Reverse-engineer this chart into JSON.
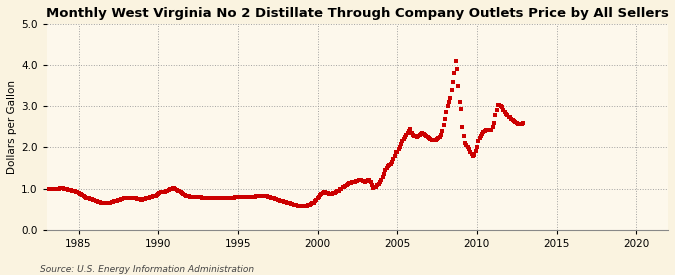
{
  "title": "Monthly West Virginia No 2 Distillate Through Company Outlets Price by All Sellers",
  "ylabel": "Dollars per Gallon",
  "source": "Source: U.S. Energy Information Administration",
  "xlim": [
    1983,
    2022
  ],
  "ylim": [
    0.0,
    5.0
  ],
  "yticks": [
    0.0,
    1.0,
    2.0,
    3.0,
    4.0,
    5.0
  ],
  "xticks": [
    1985,
    1990,
    1995,
    2000,
    2005,
    2010,
    2015,
    2020
  ],
  "line_color": "#cc0000",
  "marker": "s",
  "marker_size": 2.2,
  "background_color": "#faf3e0",
  "plot_bg_color": "#fdf8ec",
  "grid_color": "#999999",
  "title_fontsize": 9.5,
  "label_fontsize": 7.5,
  "tick_fontsize": 7.5,
  "source_fontsize": 6.5,
  "data": [
    [
      1983.0,
      1.0
    ],
    [
      1983.083,
      0.99
    ],
    [
      1983.167,
      0.99
    ],
    [
      1983.25,
      0.98
    ],
    [
      1983.333,
      0.98
    ],
    [
      1983.417,
      0.99
    ],
    [
      1983.5,
      1.0
    ],
    [
      1983.583,
      1.0
    ],
    [
      1983.667,
      1.0
    ],
    [
      1983.75,
      1.0
    ],
    [
      1983.833,
      1.01
    ],
    [
      1983.917,
      1.01
    ],
    [
      1984.0,
      1.01
    ],
    [
      1984.083,
      1.0
    ],
    [
      1984.167,
      0.99
    ],
    [
      1984.25,
      0.98
    ],
    [
      1984.333,
      0.97
    ],
    [
      1984.417,
      0.96
    ],
    [
      1984.5,
      0.96
    ],
    [
      1984.583,
      0.95
    ],
    [
      1984.667,
      0.94
    ],
    [
      1984.75,
      0.93
    ],
    [
      1984.833,
      0.92
    ],
    [
      1984.917,
      0.91
    ],
    [
      1985.0,
      0.9
    ],
    [
      1985.083,
      0.88
    ],
    [
      1985.167,
      0.86
    ],
    [
      1985.25,
      0.84
    ],
    [
      1985.333,
      0.82
    ],
    [
      1985.417,
      0.8
    ],
    [
      1985.5,
      0.78
    ],
    [
      1985.583,
      0.77
    ],
    [
      1985.667,
      0.76
    ],
    [
      1985.75,
      0.75
    ],
    [
      1985.833,
      0.74
    ],
    [
      1985.917,
      0.73
    ],
    [
      1986.0,
      0.72
    ],
    [
      1986.083,
      0.71
    ],
    [
      1986.167,
      0.7
    ],
    [
      1986.25,
      0.68
    ],
    [
      1986.333,
      0.67
    ],
    [
      1986.417,
      0.66
    ],
    [
      1986.5,
      0.65
    ],
    [
      1986.583,
      0.65
    ],
    [
      1986.667,
      0.65
    ],
    [
      1986.75,
      0.65
    ],
    [
      1986.833,
      0.65
    ],
    [
      1986.917,
      0.65
    ],
    [
      1987.0,
      0.66
    ],
    [
      1987.083,
      0.67
    ],
    [
      1987.167,
      0.68
    ],
    [
      1987.25,
      0.69
    ],
    [
      1987.333,
      0.7
    ],
    [
      1987.417,
      0.71
    ],
    [
      1987.5,
      0.72
    ],
    [
      1987.583,
      0.73
    ],
    [
      1987.667,
      0.74
    ],
    [
      1987.75,
      0.75
    ],
    [
      1987.833,
      0.76
    ],
    [
      1987.917,
      0.77
    ],
    [
      1988.0,
      0.77
    ],
    [
      1988.083,
      0.77
    ],
    [
      1988.167,
      0.77
    ],
    [
      1988.25,
      0.77
    ],
    [
      1988.333,
      0.77
    ],
    [
      1988.417,
      0.77
    ],
    [
      1988.5,
      0.76
    ],
    [
      1988.583,
      0.76
    ],
    [
      1988.667,
      0.75
    ],
    [
      1988.75,
      0.74
    ],
    [
      1988.833,
      0.74
    ],
    [
      1988.917,
      0.73
    ],
    [
      1989.0,
      0.73
    ],
    [
      1989.083,
      0.74
    ],
    [
      1989.167,
      0.75
    ],
    [
      1989.25,
      0.76
    ],
    [
      1989.333,
      0.77
    ],
    [
      1989.417,
      0.78
    ],
    [
      1989.5,
      0.79
    ],
    [
      1989.583,
      0.8
    ],
    [
      1989.667,
      0.81
    ],
    [
      1989.75,
      0.82
    ],
    [
      1989.833,
      0.83
    ],
    [
      1989.917,
      0.85
    ],
    [
      1990.0,
      0.87
    ],
    [
      1990.083,
      0.89
    ],
    [
      1990.167,
      0.91
    ],
    [
      1990.25,
      0.92
    ],
    [
      1990.333,
      0.92
    ],
    [
      1990.417,
      0.92
    ],
    [
      1990.5,
      0.93
    ],
    [
      1990.583,
      0.94
    ],
    [
      1990.667,
      0.96
    ],
    [
      1990.75,
      0.98
    ],
    [
      1990.833,
      1.0
    ],
    [
      1990.917,
      1.02
    ],
    [
      1991.0,
      1.01
    ],
    [
      1991.083,
      0.99
    ],
    [
      1991.167,
      0.97
    ],
    [
      1991.25,
      0.95
    ],
    [
      1991.333,
      0.93
    ],
    [
      1991.417,
      0.91
    ],
    [
      1991.5,
      0.89
    ],
    [
      1991.583,
      0.87
    ],
    [
      1991.667,
      0.85
    ],
    [
      1991.75,
      0.83
    ],
    [
      1991.833,
      0.82
    ],
    [
      1991.917,
      0.81
    ],
    [
      1992.0,
      0.8
    ],
    [
      1992.083,
      0.8
    ],
    [
      1992.167,
      0.8
    ],
    [
      1992.25,
      0.8
    ],
    [
      1992.333,
      0.8
    ],
    [
      1992.417,
      0.8
    ],
    [
      1992.5,
      0.79
    ],
    [
      1992.583,
      0.79
    ],
    [
      1992.667,
      0.79
    ],
    [
      1992.75,
      0.78
    ],
    [
      1992.833,
      0.78
    ],
    [
      1992.917,
      0.77
    ],
    [
      1993.0,
      0.77
    ],
    [
      1993.083,
      0.77
    ],
    [
      1993.167,
      0.77
    ],
    [
      1993.25,
      0.77
    ],
    [
      1993.333,
      0.77
    ],
    [
      1993.417,
      0.77
    ],
    [
      1993.5,
      0.77
    ],
    [
      1993.583,
      0.77
    ],
    [
      1993.667,
      0.77
    ],
    [
      1993.75,
      0.77
    ],
    [
      1993.833,
      0.77
    ],
    [
      1993.917,
      0.77
    ],
    [
      1994.0,
      0.77
    ],
    [
      1994.083,
      0.77
    ],
    [
      1994.167,
      0.77
    ],
    [
      1994.25,
      0.77
    ],
    [
      1994.333,
      0.77
    ],
    [
      1994.417,
      0.78
    ],
    [
      1994.5,
      0.78
    ],
    [
      1994.583,
      0.78
    ],
    [
      1994.667,
      0.78
    ],
    [
      1994.75,
      0.78
    ],
    [
      1994.833,
      0.79
    ],
    [
      1994.917,
      0.79
    ],
    [
      1995.0,
      0.79
    ],
    [
      1995.083,
      0.79
    ],
    [
      1995.167,
      0.79
    ],
    [
      1995.25,
      0.79
    ],
    [
      1995.333,
      0.79
    ],
    [
      1995.417,
      0.79
    ],
    [
      1995.5,
      0.79
    ],
    [
      1995.583,
      0.79
    ],
    [
      1995.667,
      0.79
    ],
    [
      1995.75,
      0.79
    ],
    [
      1995.833,
      0.79
    ],
    [
      1995.917,
      0.79
    ],
    [
      1996.0,
      0.79
    ],
    [
      1996.083,
      0.8
    ],
    [
      1996.167,
      0.81
    ],
    [
      1996.25,
      0.82
    ],
    [
      1996.333,
      0.83
    ],
    [
      1996.417,
      0.83
    ],
    [
      1996.5,
      0.83
    ],
    [
      1996.583,
      0.83
    ],
    [
      1996.667,
      0.83
    ],
    [
      1996.75,
      0.82
    ],
    [
      1996.833,
      0.81
    ],
    [
      1996.917,
      0.8
    ],
    [
      1997.0,
      0.79
    ],
    [
      1997.083,
      0.78
    ],
    [
      1997.167,
      0.77
    ],
    [
      1997.25,
      0.76
    ],
    [
      1997.333,
      0.75
    ],
    [
      1997.417,
      0.74
    ],
    [
      1997.5,
      0.73
    ],
    [
      1997.583,
      0.72
    ],
    [
      1997.667,
      0.71
    ],
    [
      1997.75,
      0.7
    ],
    [
      1997.833,
      0.69
    ],
    [
      1997.917,
      0.68
    ],
    [
      1998.0,
      0.67
    ],
    [
      1998.083,
      0.66
    ],
    [
      1998.167,
      0.65
    ],
    [
      1998.25,
      0.64
    ],
    [
      1998.333,
      0.63
    ],
    [
      1998.417,
      0.62
    ],
    [
      1998.5,
      0.61
    ],
    [
      1998.583,
      0.6
    ],
    [
      1998.667,
      0.59
    ],
    [
      1998.75,
      0.58
    ],
    [
      1998.833,
      0.57
    ],
    [
      1998.917,
      0.57
    ],
    [
      1999.0,
      0.57
    ],
    [
      1999.083,
      0.57
    ],
    [
      1999.167,
      0.57
    ],
    [
      1999.25,
      0.57
    ],
    [
      1999.333,
      0.58
    ],
    [
      1999.417,
      0.59
    ],
    [
      1999.5,
      0.6
    ],
    [
      1999.583,
      0.62
    ],
    [
      1999.667,
      0.64
    ],
    [
      1999.75,
      0.66
    ],
    [
      1999.833,
      0.69
    ],
    [
      1999.917,
      0.72
    ],
    [
      2000.0,
      0.76
    ],
    [
      2000.083,
      0.8
    ],
    [
      2000.167,
      0.84
    ],
    [
      2000.25,
      0.87
    ],
    [
      2000.333,
      0.9
    ],
    [
      2000.417,
      0.91
    ],
    [
      2000.5,
      0.91
    ],
    [
      2000.583,
      0.9
    ],
    [
      2000.667,
      0.89
    ],
    [
      2000.75,
      0.88
    ],
    [
      2000.833,
      0.88
    ],
    [
      2000.917,
      0.88
    ],
    [
      2001.0,
      0.89
    ],
    [
      2001.083,
      0.9
    ],
    [
      2001.167,
      0.91
    ],
    [
      2001.25,
      0.93
    ],
    [
      2001.333,
      0.95
    ],
    [
      2001.417,
      0.98
    ],
    [
      2001.5,
      1.0
    ],
    [
      2001.583,
      1.03
    ],
    [
      2001.667,
      1.05
    ],
    [
      2001.75,
      1.07
    ],
    [
      2001.833,
      1.09
    ],
    [
      2001.917,
      1.11
    ],
    [
      2002.0,
      1.13
    ],
    [
      2002.083,
      1.14
    ],
    [
      2002.167,
      1.15
    ],
    [
      2002.25,
      1.16
    ],
    [
      2002.333,
      1.17
    ],
    [
      2002.417,
      1.18
    ],
    [
      2002.5,
      1.19
    ],
    [
      2002.583,
      1.2
    ],
    [
      2002.667,
      1.21
    ],
    [
      2002.75,
      1.2
    ],
    [
      2002.833,
      1.19
    ],
    [
      2002.917,
      1.18
    ],
    [
      2003.0,
      1.17
    ],
    [
      2003.083,
      1.18
    ],
    [
      2003.167,
      1.2
    ],
    [
      2003.25,
      1.22
    ],
    [
      2003.333,
      1.15
    ],
    [
      2003.417,
      1.08
    ],
    [
      2003.5,
      1.02
    ],
    [
      2003.583,
      1.03
    ],
    [
      2003.667,
      1.05
    ],
    [
      2003.75,
      1.08
    ],
    [
      2003.833,
      1.11
    ],
    [
      2003.917,
      1.15
    ],
    [
      2004.0,
      1.2
    ],
    [
      2004.083,
      1.28
    ],
    [
      2004.167,
      1.36
    ],
    [
      2004.25,
      1.44
    ],
    [
      2004.333,
      1.5
    ],
    [
      2004.417,
      1.54
    ],
    [
      2004.5,
      1.57
    ],
    [
      2004.583,
      1.6
    ],
    [
      2004.667,
      1.65
    ],
    [
      2004.75,
      1.72
    ],
    [
      2004.833,
      1.8
    ],
    [
      2004.917,
      1.88
    ],
    [
      2005.0,
      1.9
    ],
    [
      2005.083,
      1.95
    ],
    [
      2005.167,
      2.0
    ],
    [
      2005.25,
      2.08
    ],
    [
      2005.333,
      2.15
    ],
    [
      2005.417,
      2.2
    ],
    [
      2005.5,
      2.25
    ],
    [
      2005.583,
      2.3
    ],
    [
      2005.667,
      2.35
    ],
    [
      2005.75,
      2.4
    ],
    [
      2005.833,
      2.45
    ],
    [
      2005.917,
      2.35
    ],
    [
      2006.0,
      2.3
    ],
    [
      2006.083,
      2.28
    ],
    [
      2006.167,
      2.27
    ],
    [
      2006.25,
      2.26
    ],
    [
      2006.333,
      2.28
    ],
    [
      2006.417,
      2.3
    ],
    [
      2006.5,
      2.32
    ],
    [
      2006.583,
      2.34
    ],
    [
      2006.667,
      2.33
    ],
    [
      2006.75,
      2.3
    ],
    [
      2006.833,
      2.27
    ],
    [
      2006.917,
      2.25
    ],
    [
      2007.0,
      2.22
    ],
    [
      2007.083,
      2.2
    ],
    [
      2007.167,
      2.19
    ],
    [
      2007.25,
      2.18
    ],
    [
      2007.333,
      2.18
    ],
    [
      2007.417,
      2.19
    ],
    [
      2007.5,
      2.2
    ],
    [
      2007.583,
      2.22
    ],
    [
      2007.667,
      2.25
    ],
    [
      2007.75,
      2.3
    ],
    [
      2007.833,
      2.4
    ],
    [
      2007.917,
      2.55
    ],
    [
      2008.0,
      2.7
    ],
    [
      2008.083,
      2.85
    ],
    [
      2008.167,
      3.0
    ],
    [
      2008.25,
      3.1
    ],
    [
      2008.333,
      3.2
    ],
    [
      2008.417,
      3.4
    ],
    [
      2008.5,
      3.6
    ],
    [
      2008.583,
      3.8
    ],
    [
      2008.667,
      4.1
    ],
    [
      2008.75,
      3.9
    ],
    [
      2008.833,
      3.5
    ],
    [
      2008.917,
      3.1
    ],
    [
      2009.0,
      2.93
    ],
    [
      2009.083,
      2.5
    ],
    [
      2009.167,
      2.28
    ],
    [
      2009.25,
      2.1
    ],
    [
      2009.333,
      2.05
    ],
    [
      2009.417,
      2.0
    ],
    [
      2009.5,
      1.95
    ],
    [
      2009.583,
      1.9
    ],
    [
      2009.667,
      1.83
    ],
    [
      2009.75,
      1.78
    ],
    [
      2009.833,
      1.82
    ],
    [
      2009.917,
      1.92
    ],
    [
      2010.0,
      2.02
    ],
    [
      2010.083,
      2.15
    ],
    [
      2010.167,
      2.22
    ],
    [
      2010.25,
      2.28
    ],
    [
      2010.333,
      2.33
    ],
    [
      2010.417,
      2.38
    ],
    [
      2010.5,
      2.4
    ],
    [
      2010.583,
      2.42
    ],
    [
      2010.667,
      2.43
    ],
    [
      2010.75,
      2.42
    ],
    [
      2010.833,
      2.42
    ],
    [
      2010.917,
      2.43
    ],
    [
      2011.0,
      2.5
    ],
    [
      2011.083,
      2.6
    ],
    [
      2011.167,
      2.78
    ],
    [
      2011.25,
      2.92
    ],
    [
      2011.333,
      3.02
    ],
    [
      2011.417,
      3.04
    ],
    [
      2011.5,
      3.01
    ],
    [
      2011.583,
      2.97
    ],
    [
      2011.667,
      2.9
    ],
    [
      2011.75,
      2.85
    ],
    [
      2011.833,
      2.8
    ],
    [
      2011.917,
      2.78
    ],
    [
      2012.0,
      2.75
    ],
    [
      2012.083,
      2.73
    ],
    [
      2012.167,
      2.7
    ],
    [
      2012.25,
      2.67
    ],
    [
      2012.333,
      2.64
    ],
    [
      2012.417,
      2.62
    ],
    [
      2012.5,
      2.6
    ],
    [
      2012.583,
      2.57
    ],
    [
      2012.667,
      2.56
    ],
    [
      2012.75,
      2.57
    ],
    [
      2012.833,
      2.58
    ],
    [
      2012.917,
      2.6
    ]
  ]
}
